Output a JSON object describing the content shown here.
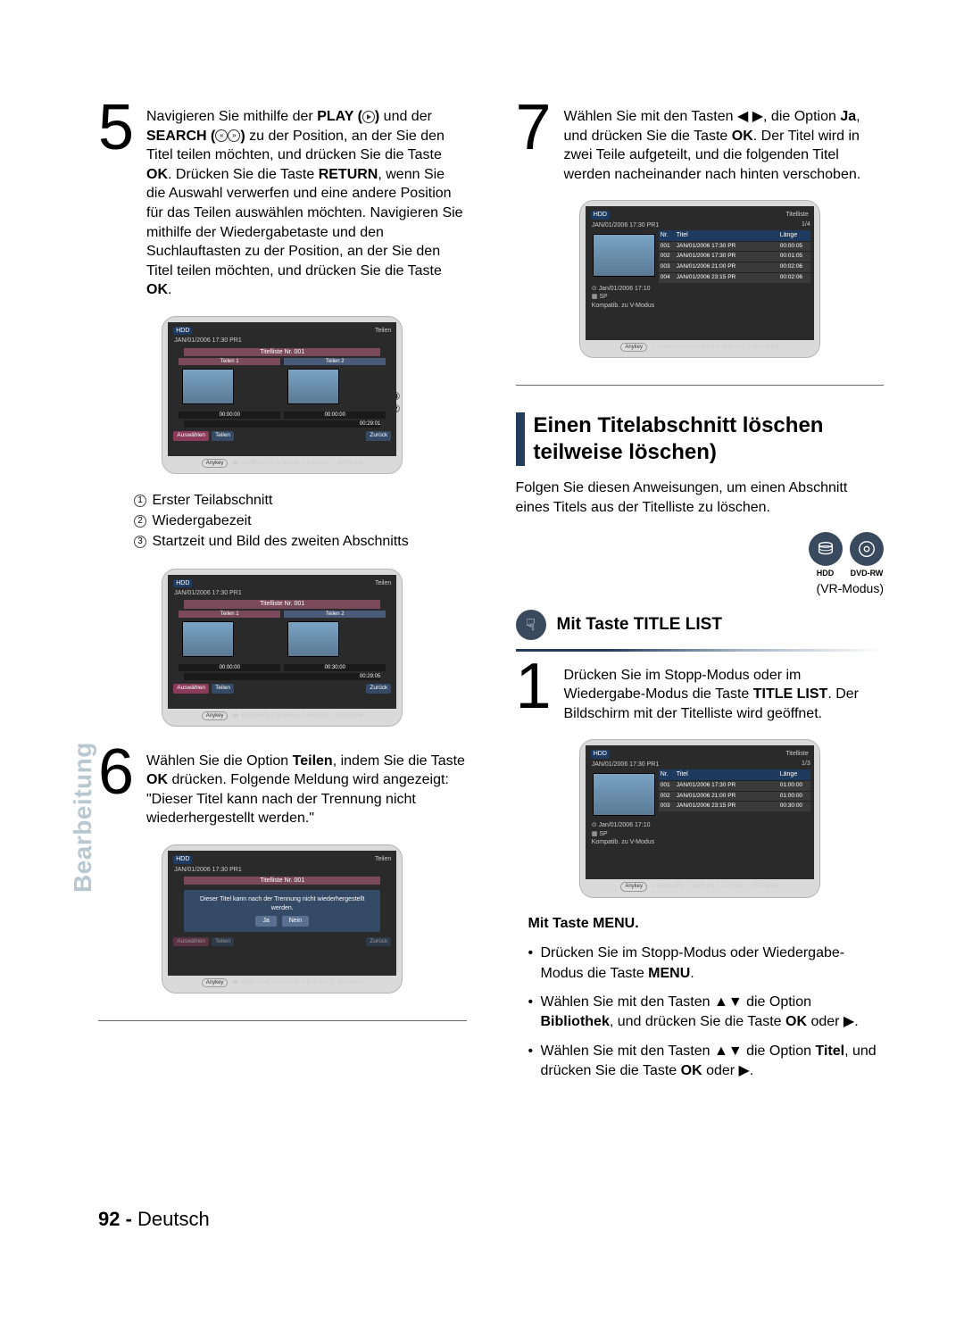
{
  "page_number": "92 -",
  "page_lang": "Deutsch",
  "side_label": "Bearbeitung",
  "left": {
    "step5": {
      "parts": [
        "Navigieren Sie mithilfe der ",
        {
          "b": "PLAY ("
        },
        " und der ",
        {
          "b": "SEARCH ("
        },
        " zu der Position, an der Sie den Titel teilen möchten, und drücken Sie die Taste ",
        {
          "b": "OK"
        },
        ".",
        " Drücken Sie die Taste ",
        {
          "b": "RETURN"
        },
        ", wenn Sie die Auswahl verwerfen und eine andere Position für das Teilen auswählen möchten. Navigieren Sie mithilfe der Wiedergabetaste und den Suchlauftasten zu der Position, an der Sie den Titel teilen möchten, und drücken Sie die Taste ",
        {
          "b": "OK"
        },
        "."
      ]
    },
    "legend": {
      "l1": "Erster Teilabschnitt",
      "l2": "Wiedergabezeit",
      "l3": "Startzeit und Bild des zweiten Abschnitts"
    },
    "step6": {
      "parts": [
        "Wählen Sie die Option ",
        {
          "b": "Teilen"
        },
        ", indem Sie die Taste ",
        {
          "b": "OK"
        },
        " drücken.",
        " Folgende Meldung wird angezeigt: \"Dieser Titel kann nach der Trennung nicht wiederhergestellt werden.\""
      ]
    },
    "screen_common": {
      "hdd": "HDD",
      "tstamp": "JAN/01/2006 17:30 PR1",
      "titelliste_nr": "Titelliste Nr. 001",
      "teilen": "Teilen",
      "teilen1": "Teilen 1",
      "teilen2": "Teilen 2",
      "tc_left": "00:00:00",
      "tc_right1": "00:00:00",
      "tc_right2": "00:30:00",
      "elapsed": "00:29:01",
      "elapsed2": "00:29:05",
      "btn_auswaehlen": "Auswählen",
      "btn_teilen": "Teilen",
      "btn_zurueck": "Zurück",
      "anykey": "Anykey",
      "footer": "◀▶ BEWEGEN   ⏎ WÄHLEN   ↶ ZURÜCK   ⓘ BEENDEN",
      "dialog": "Dieser Titel kann nach der Trennung nicht wiederhergestellt werden.",
      "ja": "Ja",
      "nein": "Nein"
    }
  },
  "right": {
    "step7": {
      "parts": [
        "Wählen Sie mit den Tasten ◀ ▶, die Option ",
        {
          "b": "Ja"
        },
        ", und drücken Sie die Taste ",
        {
          "b": "OK"
        },
        ".",
        " Der Titel wird in zwei Teile aufgeteilt, und die folgenden Titel werden nacheinander nach hinten verschoben."
      ]
    },
    "titlescreen": {
      "title": "Titelliste",
      "count": "1/4",
      "cols": {
        "nr": "Nr.",
        "titel": "Titel",
        "laenge": "Länge"
      },
      "rows": [
        {
          "nr": "001",
          "t": "JAN/01/2006 17:30 PR",
          "d": "00:00:05"
        },
        {
          "nr": "002",
          "t": "JAN/01/2006 17:30 PR",
          "d": "00:01:05"
        },
        {
          "nr": "003",
          "t": "JAN/01/2006 21:00 PR",
          "d": "00:02:06"
        },
        {
          "nr": "004",
          "t": "JAN/01/2006 23:15 PR",
          "d": "00:02:06"
        }
      ],
      "date": "Jan/01/2006 17:10",
      "sp": "SP",
      "compat": "Kompatib. zu V-Modus",
      "footer": "⇕ BEWEGEN   ⏎ WÄHLEN   ↶ ZURÜCK   ⓘ BEENDEN"
    },
    "section_title_l1": "Einen Titelabschnitt löschen",
    "section_title_l2": "teilweise löschen)",
    "section_intro": "Folgen Sie diesen Anweisungen, um einen Abschnitt eines Titels aus der Titelliste zu löschen.",
    "icon_hdd": "HDD",
    "icon_dvdrw": "DVD-RW",
    "vr_mode": "(VR-Modus)",
    "subhead": "Mit Taste TITLE LIST",
    "step1": {
      "parts": [
        "Drücken Sie im Stopp-Modus oder im Wiedergabe-Modus die Taste ",
        {
          "b": "TITLE LIST"
        },
        ".",
        " Der Bildschirm mit der Titelliste wird geöffnet."
      ]
    },
    "titlescreen2": {
      "count": "1/3",
      "rows": [
        {
          "nr": "001",
          "t": "JAN/01/2006 17:30 PR",
          "d": "01:00:00"
        },
        {
          "nr": "002",
          "t": "JAN/01/2006 21:00 PR",
          "d": "01:00:00"
        },
        {
          "nr": "003",
          "t": "JAN/01/2006 23:15 PR",
          "d": "00:30:00"
        }
      ]
    },
    "mtmenu": "Mit Taste MENU.",
    "bullets": [
      [
        "Drücken Sie im Stopp-Modus oder Wiedergabe-Modus die Taste ",
        {
          "b": "MENU"
        },
        "."
      ],
      [
        "Wählen Sie mit den Tasten ▲▼ die Option ",
        {
          "b": "Bibliothek"
        },
        ", und drücken Sie die Taste ",
        {
          "b": "OK"
        },
        " oder ▶."
      ],
      [
        "Wählen Sie mit den Tasten ▲▼ die Option ",
        {
          "b": "Titel"
        },
        ", und drücken Sie die Taste ",
        {
          "b": "OK"
        },
        " oder ▶."
      ]
    ]
  },
  "colors": {
    "accent": "#243b5c",
    "sidebar": "#b9c7d0"
  }
}
